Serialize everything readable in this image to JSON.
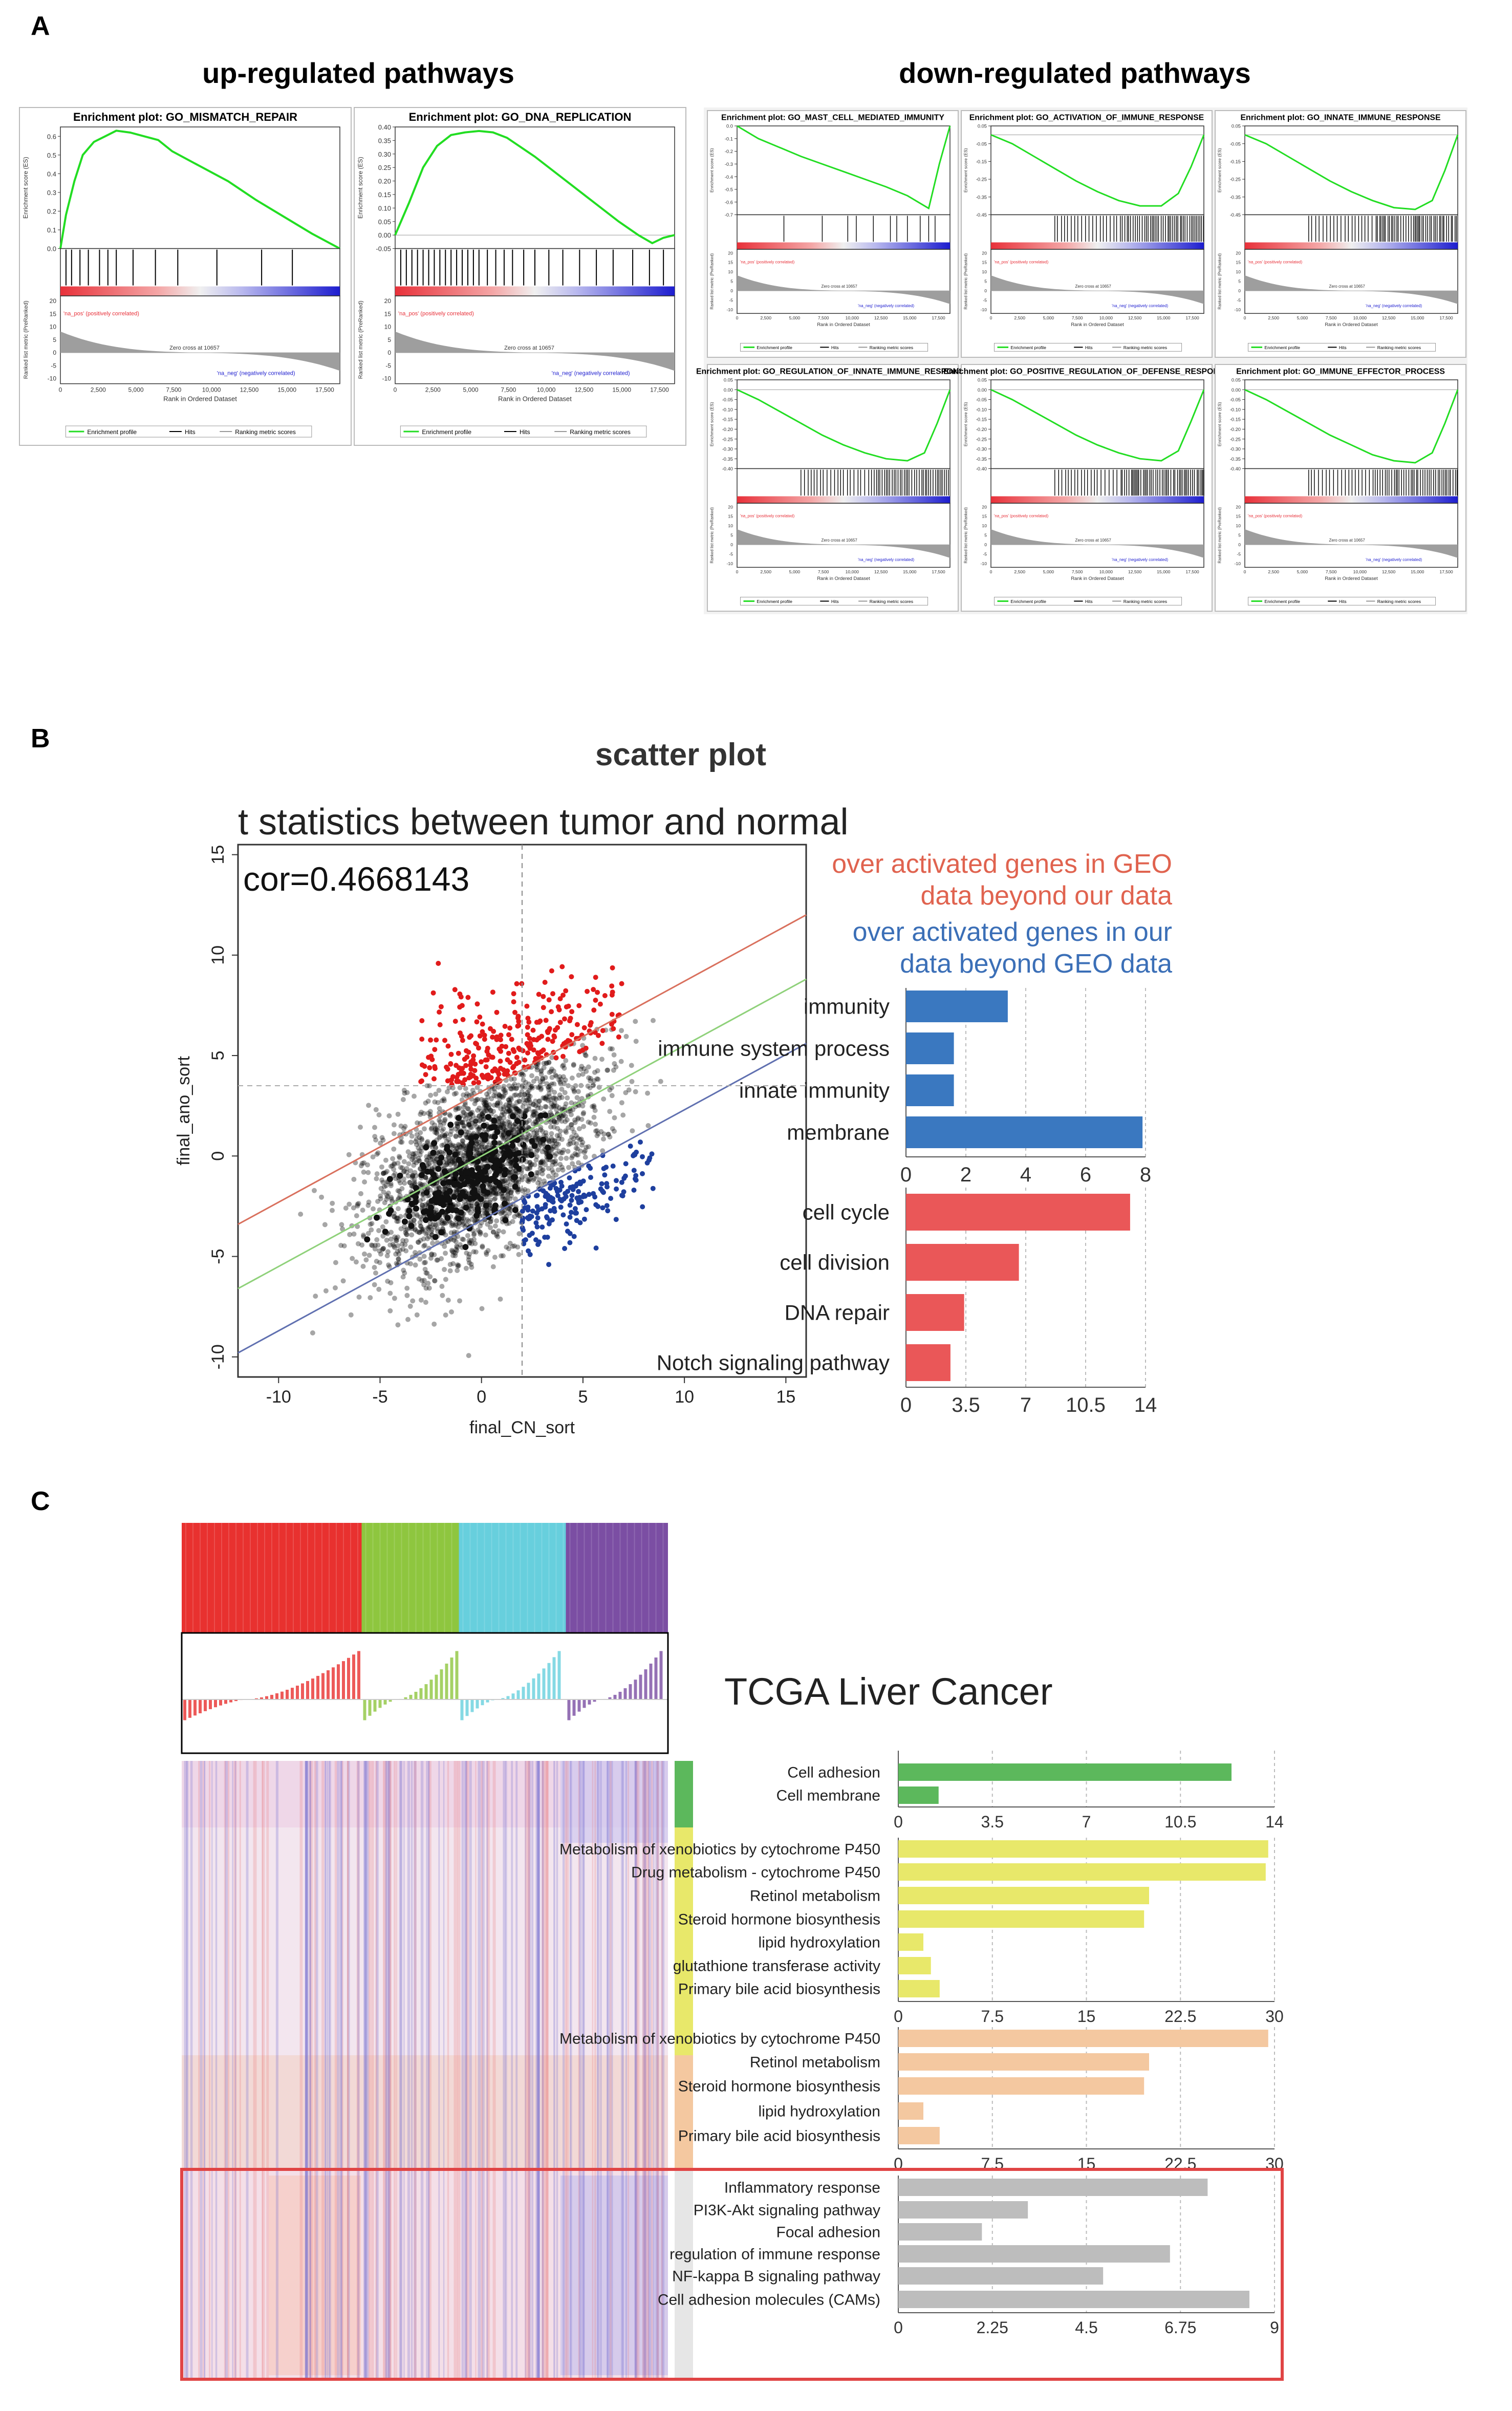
{
  "panels": {
    "a": "A",
    "b": "B",
    "c": "C"
  },
  "panel_a": {
    "up_title": "up-regulated pathways",
    "down_title": "down-regulated pathways",
    "legend": {
      "profile": "Enrichment profile",
      "hits": "Hits",
      "ranking": "Ranking metric scores"
    },
    "xlabel": "Rank in Ordered Dataset",
    "ylabel_es": "Enrichment score (ES)",
    "ylabel_rank": "Ranked list metric (PreRanked)",
    "zero_cross": "Zero cross at 10657",
    "pos_label": "'na_pos' (positively correlated)",
    "neg_label": "'na_neg' (negatively correlated)",
    "x_ticks": [
      "0",
      "2,500",
      "5,000",
      "7,500",
      "10,000",
      "12,500",
      "15,000",
      "17,500"
    ],
    "rank_ticks": [
      "20",
      "15",
      "10",
      "5",
      "0",
      "-5",
      "-10"
    ],
    "colors": {
      "curve": "#22dd22",
      "pos": "#e8313a",
      "neg": "#1d1dcf"
    }
  },
  "chart_data": [
    {
      "type": "line",
      "id": "gsea-mismatch-repair",
      "group": "up",
      "title": "Enrichment plot: GO_MISMATCH_REPAIR",
      "ylim": [
        0,
        0.65
      ],
      "y_ticks": [
        "0.6",
        "0.5",
        "0.4",
        "0.3",
        "0.2",
        "0.1",
        "0.0"
      ],
      "x": [
        0,
        0.02,
        0.05,
        0.08,
        0.12,
        0.16,
        0.2,
        0.25,
        0.3,
        0.35,
        0.4,
        0.5,
        0.6,
        0.7,
        0.8,
        0.9,
        1
      ],
      "es": [
        0,
        0.18,
        0.36,
        0.5,
        0.57,
        0.6,
        0.63,
        0.62,
        0.6,
        0.58,
        0.52,
        0.44,
        0.36,
        0.26,
        0.17,
        0.08,
        0
      ],
      "hits": [
        0.02,
        0.04,
        0.07,
        0.1,
        0.14,
        0.17,
        0.2,
        0.26,
        0.34,
        0.42,
        0.56,
        0.72,
        0.83
      ]
    },
    {
      "type": "line",
      "id": "gsea-dna-replication",
      "group": "up",
      "title": "Enrichment plot: GO_DNA_REPLICATION",
      "ylim": [
        -0.05,
        0.4
      ],
      "y_ticks": [
        "0.40",
        "0.35",
        "0.30",
        "0.25",
        "0.20",
        "0.15",
        "0.10",
        "0.05",
        "0.00",
        "-0.05"
      ],
      "x": [
        0,
        0.05,
        0.1,
        0.15,
        0.2,
        0.25,
        0.3,
        0.35,
        0.4,
        0.5,
        0.6,
        0.7,
        0.8,
        0.87,
        0.92,
        0.96,
        1
      ],
      "es": [
        0,
        0.12,
        0.25,
        0.33,
        0.37,
        0.38,
        0.385,
        0.38,
        0.36,
        0.29,
        0.21,
        0.13,
        0.05,
        0.0,
        -0.03,
        -0.01,
        0
      ],
      "hits": [
        0.02,
        0.04,
        0.06,
        0.08,
        0.1,
        0.12,
        0.14,
        0.16,
        0.18,
        0.2,
        0.22,
        0.24,
        0.26,
        0.28,
        0.3,
        0.33,
        0.36,
        0.39,
        0.42,
        0.46,
        0.5,
        0.55,
        0.6,
        0.66,
        0.72,
        0.78,
        0.85,
        0.91,
        0.96
      ]
    },
    {
      "type": "line",
      "id": "gsea-mast-cell",
      "group": "down",
      "title": "Enrichment plot: GO_MAST_CELL_MEDIATED_IMMUNITY",
      "ylim": [
        -0.7,
        0.0
      ],
      "y_ticks": [
        "0.0",
        "-0.1",
        "-0.2",
        "-0.3",
        "-0.4",
        "-0.5",
        "-0.6",
        "-0.7"
      ],
      "x": [
        0,
        0.05,
        0.1,
        0.2,
        0.3,
        0.4,
        0.5,
        0.6,
        0.7,
        0.8,
        0.85,
        0.9,
        0.95,
        1
      ],
      "es": [
        0,
        -0.05,
        -0.1,
        -0.17,
        -0.24,
        -0.3,
        -0.36,
        -0.42,
        -0.48,
        -0.55,
        -0.6,
        -0.65,
        -0.3,
        0
      ],
      "hits": [
        0.22,
        0.4,
        0.52,
        0.56,
        0.64,
        0.72,
        0.75,
        0.8,
        0.86,
        0.9,
        0.93
      ]
    },
    {
      "type": "line",
      "id": "gsea-activation-immune",
      "group": "down",
      "title": "Enrichment plot: GO_ACTIVATION_OF_IMMUNE_RESPONSE",
      "ylim": [
        -0.45,
        0.05
      ],
      "y_ticks": [
        "0.05",
        "-0.05",
        "-0.15",
        "-0.25",
        "-0.35",
        "-0.45"
      ],
      "x": [
        0,
        0.1,
        0.2,
        0.3,
        0.4,
        0.5,
        0.6,
        0.7,
        0.8,
        0.88,
        0.94,
        1
      ],
      "es": [
        0,
        -0.05,
        -0.12,
        -0.19,
        -0.26,
        -0.32,
        -0.37,
        -0.4,
        -0.4,
        -0.33,
        -0.18,
        0
      ],
      "hits": []
    },
    {
      "type": "line",
      "id": "gsea-innate-immune",
      "group": "down",
      "title": "Enrichment plot: GO_INNATE_IMMUNE_RESPONSE",
      "ylim": [
        -0.45,
        0.05
      ],
      "y_ticks": [
        "0.05",
        "-0.05",
        "-0.15",
        "-0.25",
        "-0.35",
        "-0.45"
      ],
      "x": [
        0,
        0.1,
        0.2,
        0.3,
        0.4,
        0.5,
        0.6,
        0.7,
        0.8,
        0.88,
        0.94,
        1
      ],
      "es": [
        0,
        -0.05,
        -0.12,
        -0.19,
        -0.26,
        -0.32,
        -0.37,
        -0.41,
        -0.42,
        -0.37,
        -0.2,
        0
      ],
      "hits": []
    },
    {
      "type": "line",
      "id": "gsea-regulation-innate",
      "group": "down",
      "title": "Enrichment plot: GO_REGULATION_OF_INNATE_IMMUNE_RESPONSE",
      "ylim": [
        -0.4,
        0.05
      ],
      "y_ticks": [
        "0.05",
        "0.00",
        "-0.05",
        "-0.10",
        "-0.15",
        "-0.20",
        "-0.25",
        "-0.30",
        "-0.35",
        "-0.40"
      ],
      "x": [
        0,
        0.1,
        0.2,
        0.3,
        0.4,
        0.5,
        0.6,
        0.7,
        0.8,
        0.88,
        0.94,
        1
      ],
      "es": [
        0,
        -0.05,
        -0.11,
        -0.17,
        -0.23,
        -0.28,
        -0.32,
        -0.35,
        -0.36,
        -0.32,
        -0.17,
        0
      ],
      "hits": []
    },
    {
      "type": "line",
      "id": "gsea-positive-defense",
      "group": "down",
      "title": "Enrichment plot: GO_POSITIVE_REGULATION_OF_DEFENSE_RESPONSE",
      "ylim": [
        -0.4,
        0.05
      ],
      "y_ticks": [
        "0.05",
        "0.00",
        "-0.05",
        "-0.10",
        "-0.15",
        "-0.20",
        "-0.25",
        "-0.30",
        "-0.35",
        "-0.40"
      ],
      "x": [
        0,
        0.1,
        0.2,
        0.3,
        0.4,
        0.5,
        0.6,
        0.7,
        0.8,
        0.88,
        0.94,
        1
      ],
      "es": [
        0,
        -0.05,
        -0.11,
        -0.17,
        -0.23,
        -0.28,
        -0.32,
        -0.35,
        -0.36,
        -0.31,
        -0.16,
        0
      ],
      "hits": []
    },
    {
      "type": "line",
      "id": "gsea-immune-effector",
      "group": "down",
      "title": "Enrichment plot: GO_IMMUNE_EFFECTOR_PROCESS",
      "ylim": [
        -0.4,
        0.05
      ],
      "y_ticks": [
        "0.05",
        "0.00",
        "-0.05",
        "-0.10",
        "-0.15",
        "-0.20",
        "-0.25",
        "-0.30",
        "-0.35",
        "-0.40"
      ],
      "x": [
        0,
        0.1,
        0.2,
        0.3,
        0.4,
        0.5,
        0.6,
        0.7,
        0.8,
        0.88,
        0.94,
        1
      ],
      "es": [
        0,
        -0.05,
        -0.11,
        -0.17,
        -0.23,
        -0.28,
        -0.33,
        -0.36,
        -0.37,
        -0.32,
        -0.17,
        0
      ],
      "hits": []
    },
    {
      "type": "scatter",
      "id": "scatter-tumor-normal",
      "panel_title": "scatter plot",
      "title": "t statistics between tumor and normal",
      "annotation": "cor=0.4668143",
      "xlabel": "final_CN_sort",
      "ylabel": "final_ano_sort",
      "xlim": [
        -12,
        16
      ],
      "ylim": [
        -11,
        15.5
      ],
      "x_ticks": [
        -10,
        -5,
        0,
        5,
        10,
        15
      ],
      "y_ticks": [
        -10,
        -5,
        0,
        5,
        10,
        15
      ],
      "lines": [
        {
          "color": "#d9705d",
          "slope": 0.55,
          "intercept": 3.2
        },
        {
          "color": "#8fd17a",
          "slope": 0.55,
          "intercept": 0.0
        },
        {
          "color": "#6070b0",
          "slope": 0.55,
          "intercept": -3.2
        }
      ],
      "legend": [
        {
          "text": "over activated genes in GEO",
          "color": "#e0634f"
        },
        {
          "text": "data beyond our data",
          "color": "#e0634f"
        },
        {
          "text": "over activated genes in our",
          "color": "#3b6fb7"
        },
        {
          "text": "data beyond GEO data",
          "color": "#3b6fb7"
        }
      ]
    },
    {
      "type": "bar",
      "id": "bar-our-data",
      "categories": [
        "immunity",
        "immune system process",
        "innate immunity",
        "membrane"
      ],
      "values": [
        3.4,
        1.6,
        1.6,
        7.9
      ],
      "xlim": [
        0,
        8
      ],
      "x_ticks": [
        "0",
        "2",
        "4",
        "6",
        "8"
      ],
      "color": "#3a78c0"
    },
    {
      "type": "bar",
      "id": "bar-geo-data",
      "categories": [
        "cell cycle",
        "cell division",
        "DNA repair",
        "Notch signaling pathway"
      ],
      "values": [
        13.1,
        6.6,
        3.4,
        2.6
      ],
      "xlim": [
        0,
        14
      ],
      "x_ticks": [
        "0",
        "3.5",
        "7",
        "10.5",
        "14"
      ],
      "color": "#ea5758"
    },
    {
      "type": "heatmap",
      "id": "tcga-heatmap",
      "title": "TCGA Liver Cancer",
      "groups": [
        "#e8312f",
        "#8ec63f",
        "#67cfdd",
        "#7b4ea3"
      ],
      "group_fractions": [
        0.37,
        0.2,
        0.22,
        0.21
      ]
    },
    {
      "type": "bar",
      "id": "bar-c1",
      "categories": [
        "Cell adhesion",
        "Cell membrane"
      ],
      "values": [
        12.4,
        1.5
      ],
      "xlim": [
        0,
        14
      ],
      "x_ticks": [
        "0",
        "3.5",
        "7",
        "10.5",
        "14"
      ],
      "color": "#5cb85c"
    },
    {
      "type": "bar",
      "id": "bar-c2",
      "categories": [
        "Metabolism of xenobiotics by cytochrome P450",
        "Drug metabolism - cytochrome P450",
        "Retinol metabolism",
        "Steroid hormone biosynthesis",
        "lipid hydroxylation",
        "glutathione transferase activity",
        "Primary bile acid biosynthesis"
      ],
      "values": [
        29.5,
        29.3,
        20.0,
        19.6,
        2.0,
        2.6,
        3.3
      ],
      "xlim": [
        0,
        30
      ],
      "x_ticks": [
        "0",
        "7.5",
        "15",
        "22.5",
        "30"
      ],
      "color": "#e8e86a"
    },
    {
      "type": "bar",
      "id": "bar-c3",
      "categories": [
        "Metabolism of xenobiotics by cytochrome P450",
        "Retinol metabolism",
        "Steroid hormone biosynthesis",
        "lipid hydroxylation",
        "Primary bile acid biosynthesis"
      ],
      "values": [
        29.5,
        20.0,
        19.6,
        2.0,
        3.3
      ],
      "xlim": [
        0,
        30
      ],
      "x_ticks": [
        "0",
        "7.5",
        "15",
        "22.5",
        "30"
      ],
      "color": "#f4c8a0"
    },
    {
      "type": "bar",
      "id": "bar-c4",
      "categories": [
        "Inflammatory response",
        "PI3K-Akt signaling pathway",
        "Focal adhesion",
        "regulation of immune response",
        "NF-kappa B signaling pathway",
        "Cell adhesion molecules (CAMs)"
      ],
      "values": [
        7.4,
        3.1,
        2.0,
        6.5,
        4.9,
        8.4
      ],
      "xlim": [
        0,
        9
      ],
      "x_ticks": [
        "0",
        "2.25",
        "4.5",
        "6.75",
        "9"
      ],
      "color": "#bdbdbd"
    }
  ]
}
